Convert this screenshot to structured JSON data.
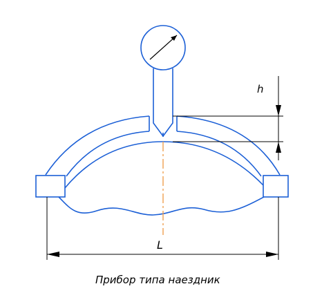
{
  "diagram": {
    "caption": "Прибор типа наездник",
    "dimension_labels": {
      "height": "h",
      "length": "L"
    },
    "colors": {
      "outline": "#1b5fd6",
      "dimension": "#000000",
      "centerline": "#f0a050",
      "background": "#ffffff"
    },
    "icons": {
      "dial_gauge": "dial-gauge-icon"
    }
  }
}
